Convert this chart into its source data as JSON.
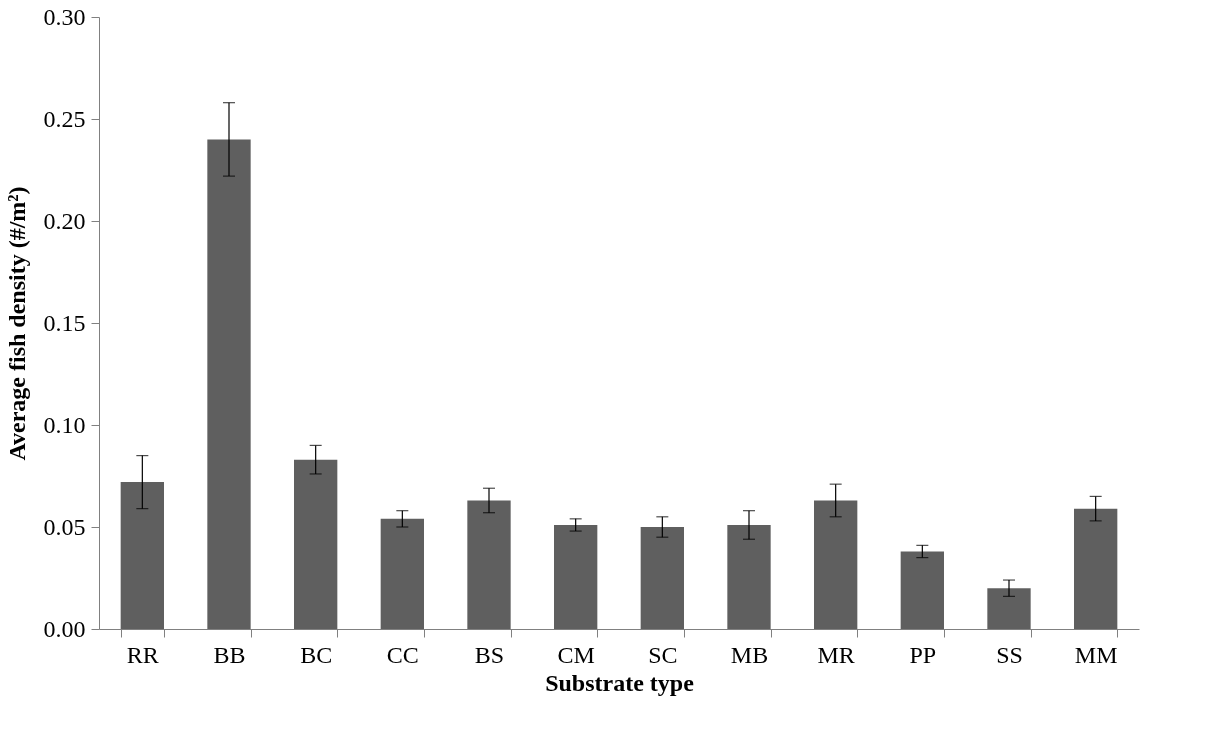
{
  "chart_data": {
    "type": "bar",
    "xlabel": "Substrate type",
    "ylabel": "Average fish density (#/m²)",
    "categories": [
      "RR",
      "BB",
      "BC",
      "CC",
      "BS",
      "CM",
      "SC",
      "MB",
      "MR",
      "PP",
      "SS",
      "MM"
    ],
    "values": [
      0.072,
      0.24,
      0.083,
      0.054,
      0.063,
      0.051,
      0.05,
      0.051,
      0.063,
      0.038,
      0.02,
      0.059
    ],
    "errors": [
      0.013,
      0.018,
      0.007,
      0.004,
      0.006,
      0.003,
      0.005,
      0.007,
      0.008,
      0.003,
      0.004,
      0.006
    ],
    "color": "#5f5f5f",
    "ylim": [
      0,
      0.3
    ],
    "yticks": [
      {
        "value": 0,
        "label": "0.00"
      },
      {
        "value": 0.05,
        "label": "0.05"
      },
      {
        "value": 0.1,
        "label": "0.10"
      },
      {
        "value": 0.15,
        "label": "0.15"
      },
      {
        "value": 0.2,
        "label": "0.20"
      },
      {
        "value": 0.25,
        "label": "0.25"
      },
      {
        "value": 0.3,
        "label": "0.30"
      }
    ],
    "grid": false
  }
}
